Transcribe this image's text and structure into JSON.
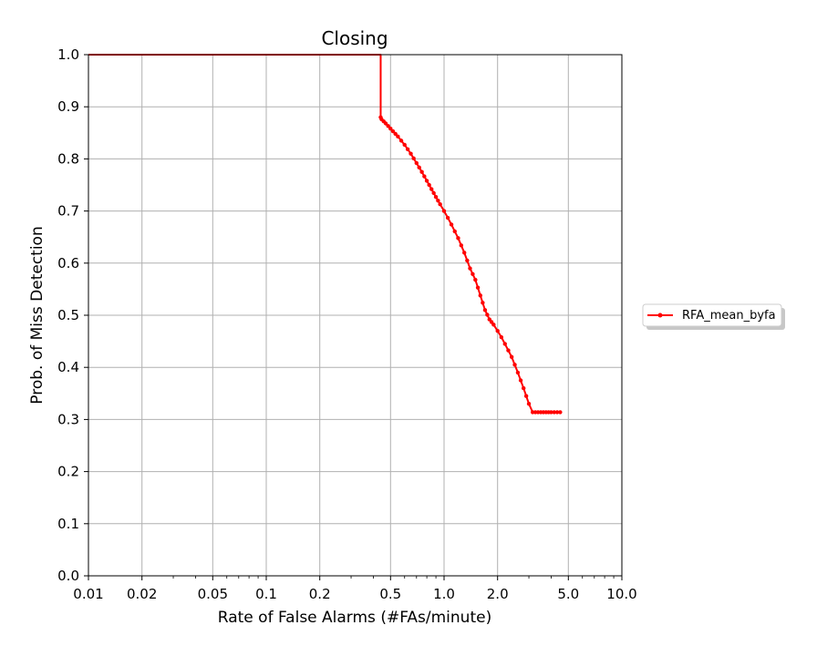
{
  "chart_data": {
    "type": "line",
    "title": "Closing",
    "xlabel": "Rate of False Alarms (#FAs/minute)",
    "ylabel": "Prob. of Miss Detection",
    "xscale": "log",
    "xlim": [
      0.01,
      10.0
    ],
    "ylim": [
      0.0,
      1.0
    ],
    "grid": true,
    "legend_position": "right",
    "x_major_ticks": [
      0.01,
      0.02,
      0.05,
      0.1,
      0.2,
      0.5,
      1.0,
      2.0,
      5.0,
      10.0
    ],
    "x_tick_labels": [
      "0.01",
      "0.02",
      "0.05",
      "0.1",
      "0.2",
      "0.5",
      "1.0",
      "2.0",
      "5.0",
      "10.0"
    ],
    "x_minor_ticks": [
      0.03,
      0.04,
      0.06,
      0.07,
      0.08,
      0.09,
      0.3,
      0.4,
      0.6,
      0.7,
      0.8,
      0.9,
      3,
      4,
      6,
      7,
      8,
      9
    ],
    "y_ticks": [
      0.0,
      0.1,
      0.2,
      0.3,
      0.4,
      0.5,
      0.6,
      0.7,
      0.8,
      0.9,
      1.0
    ],
    "y_tick_labels": [
      "0.0",
      "0.1",
      "0.2",
      "0.3",
      "0.4",
      "0.5",
      "0.6",
      "0.7",
      "0.8",
      "0.9",
      "1.0"
    ],
    "series": [
      {
        "name": "RFA_mean_byfa",
        "color": "#ff0000",
        "x": [
          0.01,
          0.44,
          0.44,
          0.445,
          0.47,
          0.5,
          0.55,
          0.6,
          0.65,
          0.7,
          0.75,
          0.8,
          0.85,
          0.9,
          0.95,
          1.0,
          1.05,
          1.1,
          1.2,
          1.3,
          1.4,
          1.5,
          1.6,
          1.7,
          1.8,
          1.9,
          2.0,
          2.1,
          2.2,
          2.4,
          2.6,
          2.8,
          3.0,
          3.15,
          3.5,
          4.0,
          4.5
        ],
        "y": [
          1.0,
          1.0,
          0.88,
          0.876,
          0.868,
          0.858,
          0.843,
          0.827,
          0.81,
          0.792,
          0.775,
          0.758,
          0.742,
          0.727,
          0.713,
          0.7,
          0.687,
          0.674,
          0.648,
          0.62,
          0.59,
          0.568,
          0.538,
          0.51,
          0.492,
          0.482,
          0.47,
          0.458,
          0.445,
          0.42,
          0.39,
          0.36,
          0.33,
          0.314,
          0.314,
          0.314,
          0.314
        ]
      }
    ]
  }
}
